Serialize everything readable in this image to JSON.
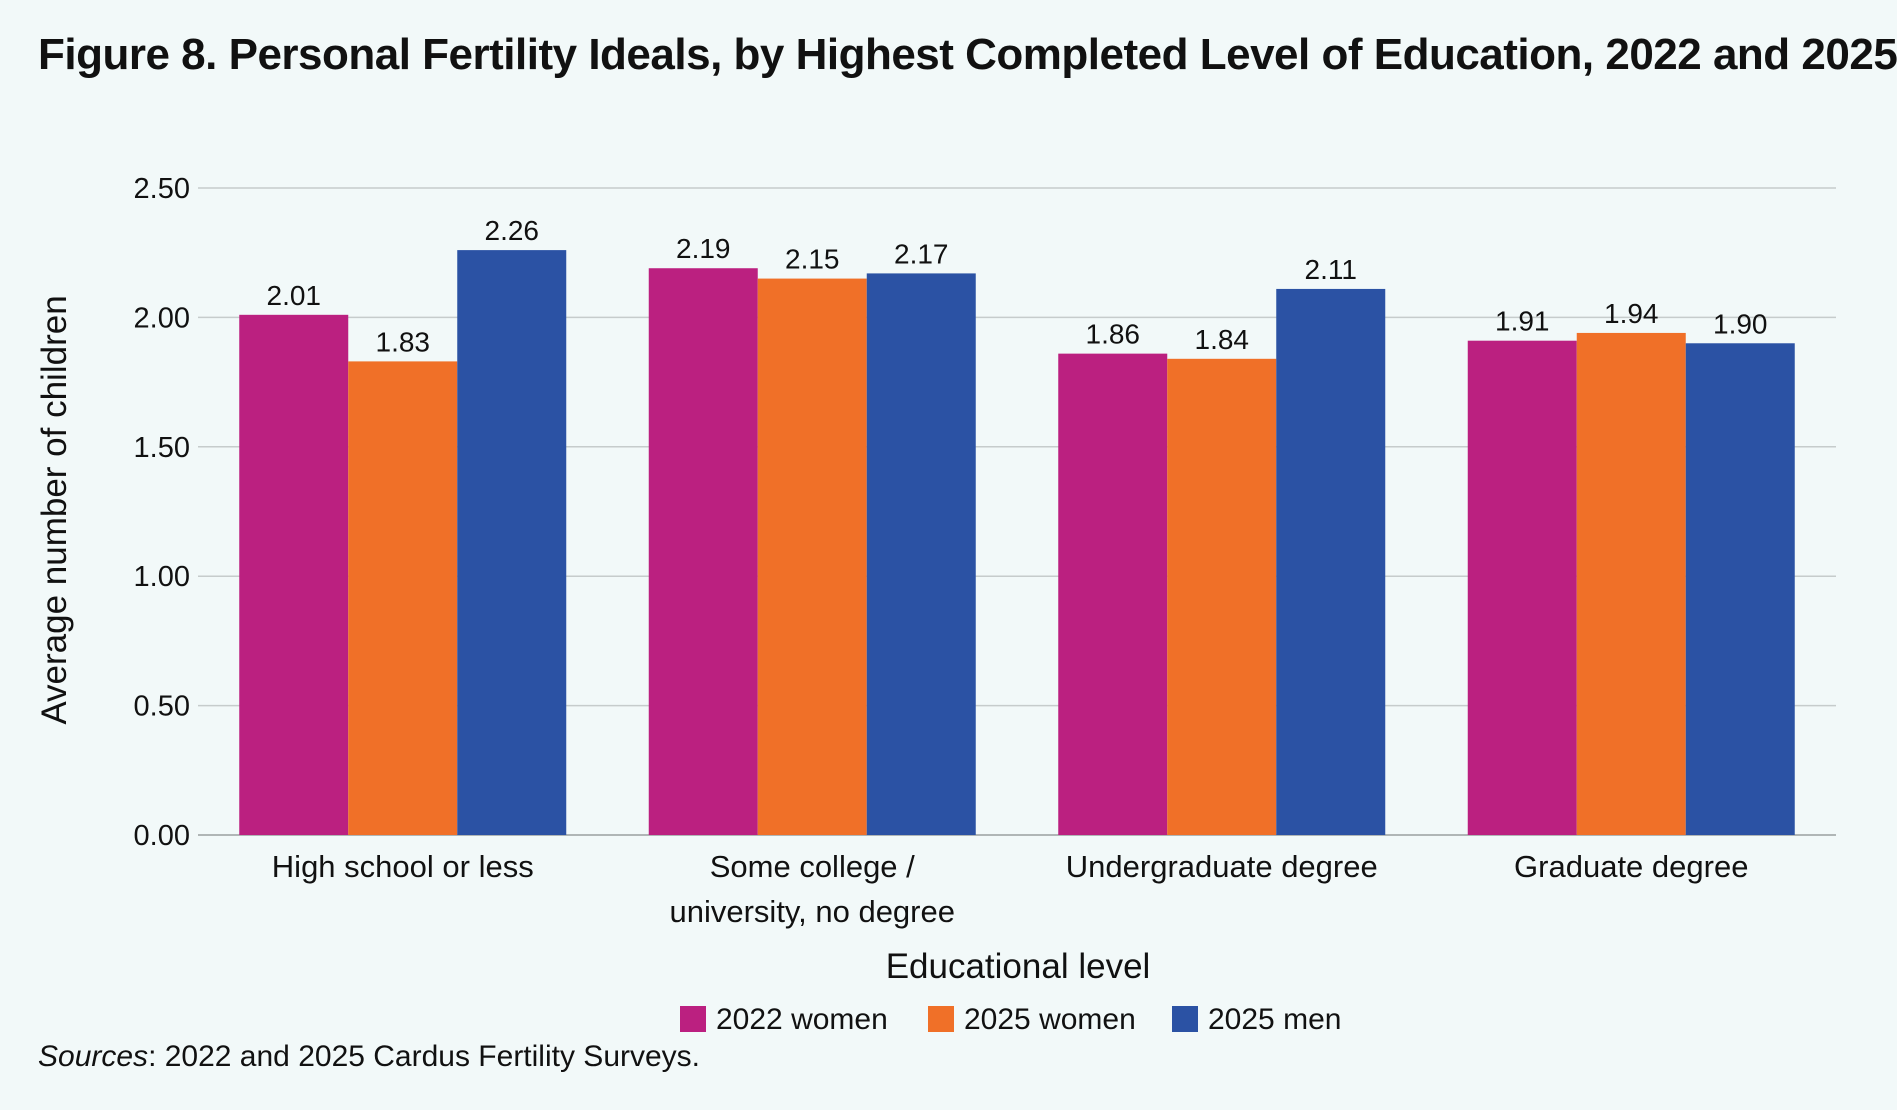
{
  "title": "Figure 8. Personal Fertility Ideals, by Highest Completed Level of Education, 2022 and 2025",
  "sources": {
    "label": "Sources",
    "text": ": 2022 and 2025 Cardus Fertility Surveys."
  },
  "colors": {
    "2022 women": "#bb2080",
    "2025 women": "#f07028",
    "2025 men": "#2b52a4",
    "grid": "#c6cccc",
    "axis": "#9aa0a0"
  },
  "chart_data": {
    "type": "bar",
    "categories": [
      [
        "High school or less"
      ],
      [
        "Some college /",
        "university, no degree"
      ],
      [
        "Undergraduate degree"
      ],
      [
        "Graduate degree"
      ]
    ],
    "series": [
      {
        "name": "2022 women",
        "values": [
          2.01,
          2.19,
          1.86,
          1.91
        ],
        "labels": [
          "2.01",
          "2.19",
          "1.86",
          "1.91"
        ]
      },
      {
        "name": "2025 women",
        "values": [
          1.83,
          2.15,
          1.84,
          1.94
        ],
        "labels": [
          "1.83",
          "2.15",
          "1.84",
          "1.94"
        ]
      },
      {
        "name": "2025 men",
        "values": [
          2.26,
          2.17,
          2.11,
          1.9
        ],
        "labels": [
          "2.26",
          "2.17",
          "2.11",
          "1.90"
        ]
      }
    ],
    "xlabel": "Educational level",
    "ylabel": "Average number of children",
    "ylim": [
      0,
      2.5
    ],
    "yticks": [
      "0.00",
      "0.50",
      "1.00",
      "1.50",
      "2.00",
      "2.50"
    ],
    "grid": true,
    "legend": "bottom-center"
  }
}
